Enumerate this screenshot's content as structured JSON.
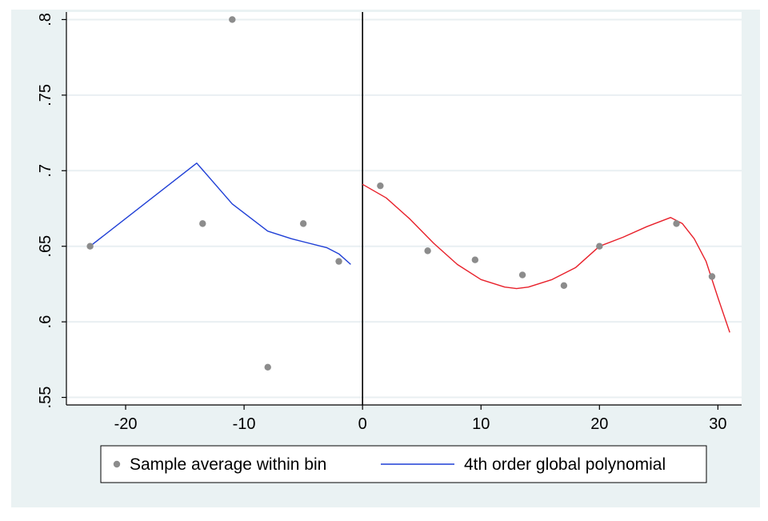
{
  "chart_data": {
    "type": "scatter",
    "title": "",
    "xlabel": "",
    "ylabel": "",
    "xlim": [
      -25,
      32
    ],
    "ylim": [
      0.545,
      0.805
    ],
    "x_ticks": [
      -20,
      -10,
      0,
      10,
      20,
      30
    ],
    "x_tick_labels": [
      "-20",
      "-10",
      "0",
      "10",
      "20",
      "30"
    ],
    "y_ticks": [
      0.55,
      0.6,
      0.65,
      0.7,
      0.75,
      0.8
    ],
    "y_tick_labels": [
      ".55",
      ".6",
      ".65",
      ".7",
      ".75",
      ".8"
    ],
    "cutoff": 0,
    "grid": true,
    "legend_position": "bottom",
    "series": [
      {
        "name": "Sample average within bin",
        "kind": "scatter",
        "color": "#8c8c8c",
        "points": [
          [
            -23,
            0.65
          ],
          [
            -13.5,
            0.665
          ],
          [
            -11,
            0.8
          ],
          [
            -8,
            0.57
          ],
          [
            -5,
            0.665
          ],
          [
            -2,
            0.64
          ],
          [
            1.5,
            0.69
          ],
          [
            5.5,
            0.647
          ],
          [
            9.5,
            0.641
          ],
          [
            13.5,
            0.631
          ],
          [
            17,
            0.624
          ],
          [
            20,
            0.65
          ],
          [
            26.5,
            0.665
          ],
          [
            29.5,
            0.63
          ]
        ]
      },
      {
        "name": "4th order global polynomial",
        "kind": "line",
        "color": "#1f3fd6",
        "points": [
          [
            -23,
            0.65
          ],
          [
            -14,
            0.705
          ],
          [
            -11,
            0.678
          ],
          [
            -8,
            0.66
          ],
          [
            -6,
            0.655
          ],
          [
            -3,
            0.649
          ],
          [
            -2,
            0.645
          ],
          [
            -1,
            0.638
          ]
        ]
      },
      {
        "kind": "line",
        "color": "#e8202a",
        "points": [
          [
            0,
            0.691
          ],
          [
            2,
            0.682
          ],
          [
            4,
            0.668
          ],
          [
            6,
            0.652
          ],
          [
            8,
            0.638
          ],
          [
            10,
            0.628
          ],
          [
            12,
            0.623
          ],
          [
            13,
            0.622
          ],
          [
            14,
            0.623
          ],
          [
            16,
            0.628
          ],
          [
            18,
            0.636
          ],
          [
            20,
            0.65
          ],
          [
            22,
            0.656
          ],
          [
            24,
            0.663
          ],
          [
            26,
            0.669
          ],
          [
            27,
            0.665
          ],
          [
            28,
            0.655
          ],
          [
            29,
            0.64
          ],
          [
            30,
            0.616
          ],
          [
            31,
            0.593
          ]
        ]
      }
    ]
  },
  "colors": {
    "background_outer": "#eaf2f3",
    "plot_background": "#ffffff",
    "grid": "#e9eff2"
  }
}
